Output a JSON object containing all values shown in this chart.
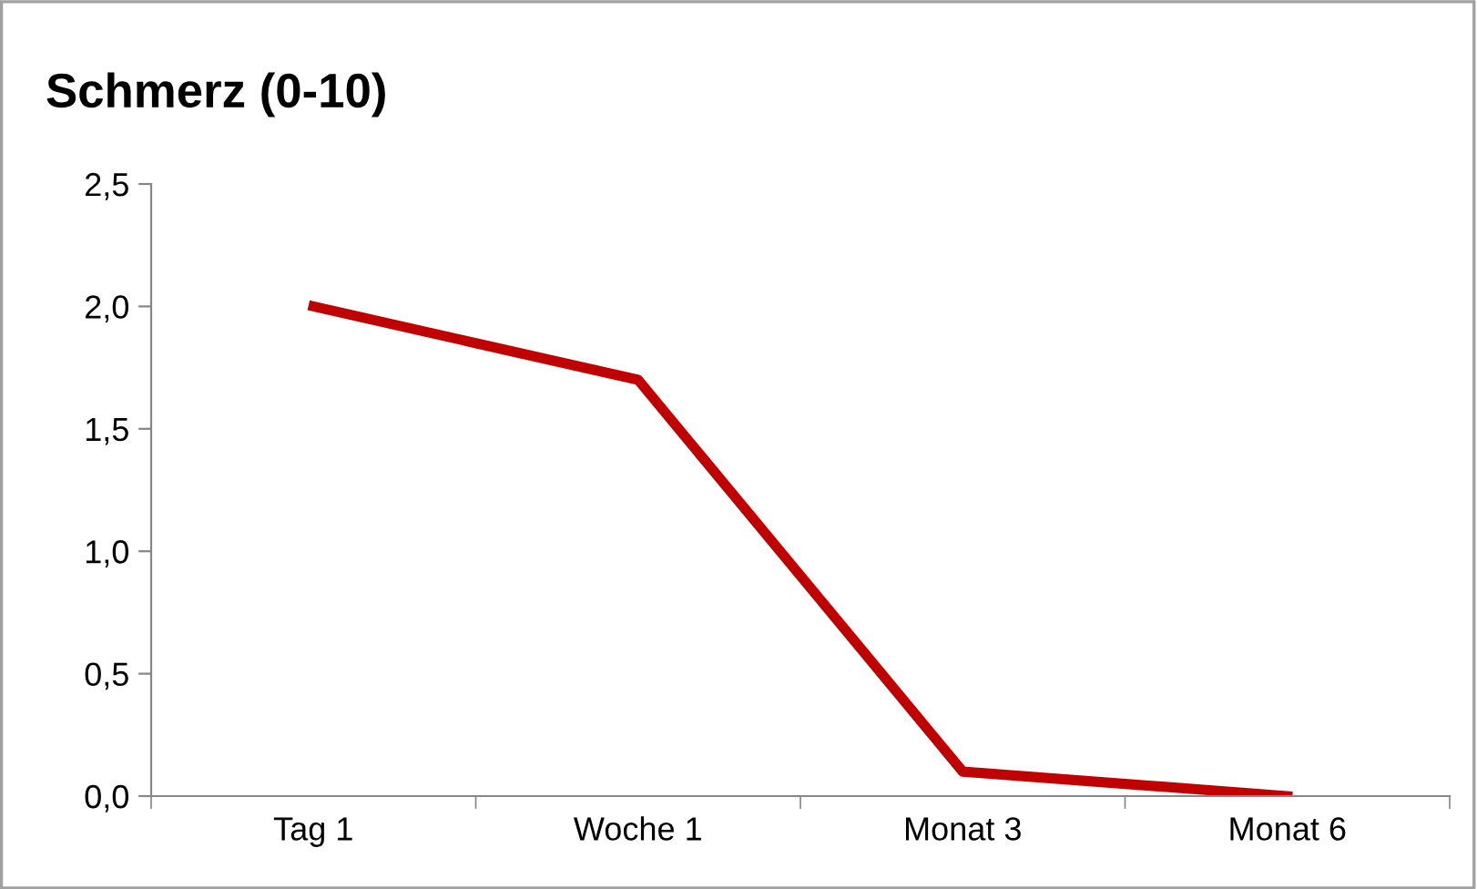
{
  "chart_data": {
    "type": "line",
    "title": "Schmerz (0-10)",
    "categories": [
      "Tag 1",
      "Woche 1",
      "Monat 3",
      "Monat 6"
    ],
    "series": [
      {
        "color": "#c00000",
        "values": [
          2.0,
          1.7,
          0.1,
          0.0
        ]
      }
    ],
    "ylim": [
      0,
      2.5
    ],
    "yticks": [
      {
        "value": 0,
        "label": "0,0"
      },
      {
        "value": 0.5,
        "label": "0,5"
      },
      {
        "value": 1.0,
        "label": "1,0"
      },
      {
        "value": 1.5,
        "label": "1,5"
      },
      {
        "value": 2.0,
        "label": "2,0"
      },
      {
        "value": 2.5,
        "label": "2,5"
      }
    ],
    "grid": false,
    "marker": "none",
    "line_style": "solid"
  }
}
